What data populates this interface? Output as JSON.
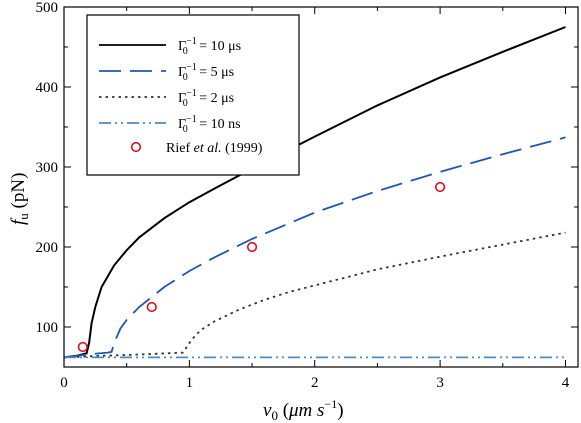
{
  "chart_data": {
    "type": "line",
    "xlabel": "v0 (μm s⁻¹)",
    "xlabel_parts": {
      "symbol": "v",
      "sub": "0",
      "unit_open": " (",
      "unit_main": "μm s",
      "unit_exp": "−1",
      "unit_close": ")"
    },
    "ylabel": "fu (pN)",
    "ylabel_parts": {
      "symbol": "f",
      "sub": "u",
      "unit": " (pN)"
    },
    "xlim": [
      0,
      4.1
    ],
    "ylim": [
      50,
      500
    ],
    "xticks": [
      0,
      1,
      2,
      3,
      4
    ],
    "yticks": [
      100,
      200,
      300,
      400,
      500
    ],
    "xtick_labels": [
      "0",
      "1",
      "2",
      "3",
      "4"
    ],
    "ytick_labels": [
      "100",
      "200",
      "300",
      "400",
      "500"
    ],
    "grid": false,
    "legend_position": "top-left",
    "series": [
      {
        "name": "Γ0⁻¹ = 10 μs",
        "legend": {
          "main": "Γ",
          "sub": "0",
          "sup": "−1",
          "rest": " = 10 μs"
        },
        "color": "#000000",
        "style": "solid",
        "x": [
          0,
          0.1,
          0.15,
          0.18,
          0.2,
          0.22,
          0.25,
          0.3,
          0.4,
          0.5,
          0.6,
          0.8,
          1.0,
          1.2,
          1.5,
          2.0,
          2.5,
          3.0,
          3.5,
          4.0
        ],
        "y": [
          62,
          64,
          66,
          67,
          80,
          105,
          125,
          150,
          177,
          196,
          212,
          236,
          256,
          273,
          298,
          338,
          377,
          412,
          444,
          475
        ]
      },
      {
        "name": "Γ0⁻¹ = 5 μs",
        "legend": {
          "main": "Γ",
          "sub": "0",
          "sup": "−1",
          "rest": " = 5 μs"
        },
        "color": "#1f57b5",
        "style": "dashed",
        "x": [
          0,
          0.2,
          0.35,
          0.38,
          0.4,
          0.45,
          0.5,
          0.6,
          0.8,
          1.0,
          1.2,
          1.5,
          2.0,
          2.5,
          3.0,
          3.5,
          4.0
        ],
        "y": [
          62,
          66,
          68,
          69,
          80,
          98,
          109,
          125,
          150,
          170,
          187,
          210,
          243,
          270,
          294,
          316,
          337
        ]
      },
      {
        "name": "Γ0⁻¹ = 2 μs",
        "legend": {
          "main": "Γ",
          "sub": "0",
          "sup": "−1",
          "rest": " = 2 μs"
        },
        "color": "#333333",
        "style": "dotted",
        "x": [
          0,
          0.3,
          0.5,
          0.8,
          0.95,
          1.0,
          1.05,
          1.1,
          1.2,
          1.4,
          1.6,
          1.8,
          2.0,
          2.5,
          3.0,
          3.5,
          4.0
        ],
        "y": [
          62,
          64,
          65,
          67,
          68,
          80,
          90,
          97,
          107,
          122,
          134,
          144,
          152,
          172,
          188,
          203,
          218
        ]
      },
      {
        "name": "Γ0⁻¹ = 10 ns",
        "legend": {
          "main": "Γ",
          "sub": "0",
          "sup": "−1",
          "rest": " = 10 ns"
        },
        "color": "#4a8cc2",
        "style": "dashdotdot",
        "x": [
          0,
          1,
          2,
          3,
          4
        ],
        "y": [
          62,
          62,
          62,
          62,
          62
        ]
      }
    ],
    "scatter": {
      "name": "Rief et al. (1999)",
      "legend": {
        "prefix": "Rief ",
        "italic": "et al.",
        "suffix": " (1999)"
      },
      "color": "#e0101a",
      "x": [
        0.15,
        0.7,
        1.5,
        3.0
      ],
      "y": [
        75,
        125,
        200,
        275
      ]
    }
  }
}
